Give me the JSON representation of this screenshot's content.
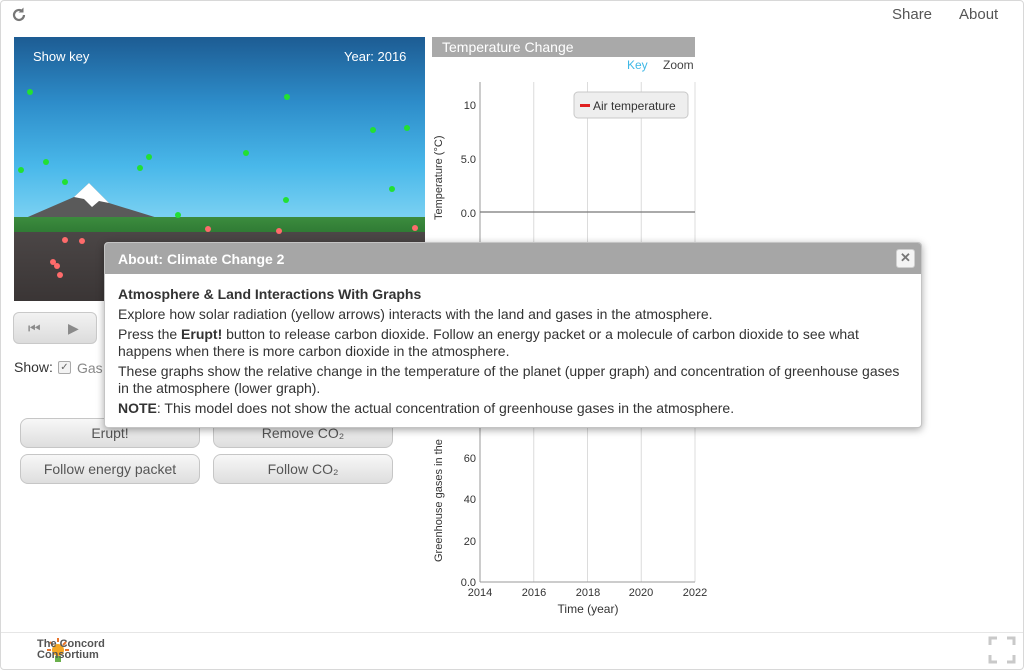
{
  "topbar": {
    "share_label": "Share",
    "about_label": "About",
    "reload_icon": "reload-icon"
  },
  "sim": {
    "show_key_label": "Show key",
    "year_label": "Year: 2016"
  },
  "controls": {
    "show_label": "Show:",
    "gases_label": "Gas",
    "erupt_label": "Erupt!",
    "remove_co2_label": "Remove CO₂",
    "follow_energy_label": "Follow energy packet",
    "follow_co2_label": "Follow CO₂"
  },
  "graph": {
    "title": "Temperature Change",
    "key_label": "Key",
    "zoom_label": "Zoom",
    "legend_air": "Air temperature",
    "legend_color": "#e02020",
    "upper_ylabel": "Temperature (°C)",
    "lower_ylabel": "Greenhouse gases in the",
    "xlabel": "Time (year)"
  },
  "chart_data": [
    {
      "type": "line",
      "title": "Temperature Change",
      "ylabel": "Temperature (°C)",
      "yticks": [
        "10",
        "5.0",
        "0.0"
      ],
      "ylim": [
        -5,
        12
      ],
      "xlim": [
        2014,
        2022
      ],
      "series": [
        {
          "name": "Air temperature",
          "x": [
            2014,
            2016
          ],
          "values": [
            0,
            0
          ]
        }
      ],
      "grid": true,
      "legend": "top-right"
    },
    {
      "type": "line",
      "ylabel": "Greenhouse gases in the",
      "xlabel": "Time (year)",
      "x_ticks": [
        "2014",
        "2016",
        "2018",
        "2020",
        "2022"
      ],
      "yticks": [
        "60",
        "40",
        "20",
        "0.0"
      ],
      "ylim": [
        0,
        70
      ],
      "xlim": [
        2014,
        2022
      ],
      "grid": true
    }
  ],
  "modal": {
    "title": "About: Climate Change 2",
    "heading": "Atmosphere & Land Interactions With Graphs",
    "p1": "Explore how solar radiation (yellow arrows) interacts with the land and gases in the atmosphere.",
    "p2_pre": "Press the ",
    "p2_bold": "Erupt!",
    "p2_post": " button to release carbon dioxide. Follow an energy packet or a molecule of carbon dioxide to see what happens when there is more carbon dioxide in the atmosphere.",
    "p3": "These graphs show the relative change in the temperature of the planet (upper graph) and concentration of greenhouse gases in the atmosphere (lower graph).",
    "p4_bold": "NOTE",
    "p4_post": ": This model does not show the actual concentration of greenhouse gases in the atmosphere.",
    "close_glyph": "✕"
  },
  "footer": {
    "logo_line1": "The Concord",
    "logo_line2": "Consortium"
  }
}
